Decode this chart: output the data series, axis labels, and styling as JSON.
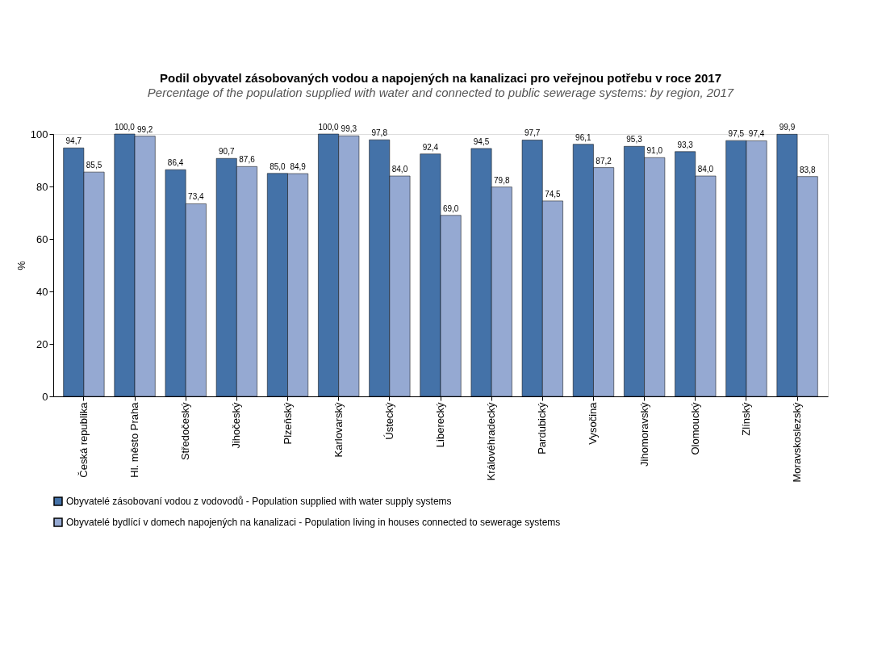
{
  "chart_data": {
    "type": "bar",
    "title": "Podil obyvatel zásobovaných vodou a napojených na kanalizaci pro veřejnou potřebu  v roce 2017",
    "subtitle": "Percentage of the population supplied with water and connected to public sewerage systems: by region, 2017",
    "ylabel": "%",
    "categories": [
      "Česká republika",
      "Hl. město Praha",
      "Středočeský",
      "Jihočeský",
      "Plzeňský",
      "Karlovarský",
      "Ústecký",
      "Liberecký",
      "Královéhradecký",
      "Pardubický",
      "Vysočina",
      "Jihomoravský",
      "Olomoucký",
      "Zlínský",
      "Moravskoslezský"
    ],
    "series": [
      {
        "name": "Obyvatelé zásobovaní vodou z vodovodů - Population supplied with water supply systems",
        "color": "#4472a8",
        "values": [
          94.7,
          100.0,
          86.4,
          90.7,
          85.0,
          100.0,
          97.8,
          92.4,
          94.5,
          97.7,
          96.1,
          95.3,
          93.3,
          97.5,
          99.9
        ],
        "value_labels": [
          "94,7",
          "100,0",
          "86,4",
          "90,7",
          "85,0",
          "100,0",
          "97,8",
          "92,4",
          "94,5",
          "97,7",
          "96,1",
          "95,3",
          "93,3",
          "97,5",
          "99,9"
        ]
      },
      {
        "name": "Obyvatelé bydlící v domech napojených na kanalizaci - Population living in houses connected to sewerage systems",
        "color": "#95a9d2",
        "values": [
          85.5,
          99.2,
          73.4,
          87.6,
          84.9,
          99.3,
          84.0,
          69.0,
          79.8,
          74.5,
          87.2,
          91.0,
          84.0,
          97.4,
          83.8
        ],
        "value_labels": [
          "85,5",
          "99,2",
          "73,4",
          "87,6",
          "84,9",
          "99,3",
          "84,0",
          "69,0",
          "79,8",
          "74,5",
          "87,2",
          "91,0",
          "84,0",
          "97,4",
          "83,8"
        ]
      }
    ],
    "ylim": [
      0,
      100
    ],
    "yticks": [
      0,
      20,
      40,
      60,
      80,
      100
    ],
    "grid": false,
    "legend": "bottom"
  }
}
